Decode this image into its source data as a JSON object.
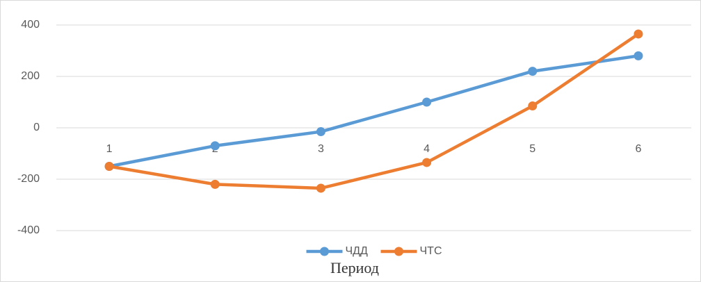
{
  "chart_data": {
    "type": "line",
    "x_label": "Период",
    "categories": [
      "1",
      "2",
      "3",
      "4",
      "5",
      "6"
    ],
    "series": [
      {
        "name": "ЧДД",
        "color": "#5b9bd5",
        "values": [
          -150,
          -70,
          -15,
          100,
          220,
          280
        ]
      },
      {
        "name": "ЧТС",
        "color": "#ed7d31",
        "values": [
          -150,
          -220,
          -235,
          -135,
          85,
          365
        ]
      }
    ],
    "ylim": [
      -400,
      400
    ],
    "yticks": [
      -400,
      -200,
      0,
      200,
      400
    ],
    "grid": true,
    "legend": "bottom"
  }
}
